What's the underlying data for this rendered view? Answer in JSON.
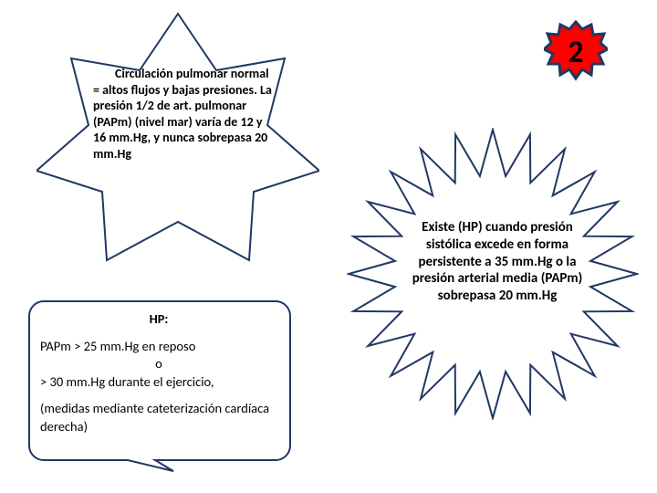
{
  "colors": {
    "background": "#ffffff",
    "stroke_navy": "#203864",
    "badge_fill": "#ff0000",
    "badge_stroke": "#203864",
    "text": "#000000"
  },
  "star7": {
    "type": "star-shape",
    "points": 7,
    "stroke_color": "#203864",
    "stroke_width": 2,
    "fill": "#ffffff",
    "text_fontsize": 14,
    "text": "Circulación pulmonar normal = altos flujos y bajas presiones. La presión 1/2 de art. pulmonar (PAPm) (nivel mar) varía de 12 y 16 mm.Hg, y nunca sobrepasa 20 mm.Hg"
  },
  "badge": {
    "type": "seal-12pt",
    "points": 12,
    "fill": "#ff0000",
    "stroke_color": "#203864",
    "stroke_width": 3,
    "value": "2",
    "value_fontsize": 34,
    "value_fontweight": 700
  },
  "sunburst": {
    "type": "starburst",
    "points": 24,
    "stroke_color": "#203864",
    "stroke_width": 2,
    "fill": "#ffffff",
    "text_fontsize": 15,
    "text": "Existe (HP) cuando presión sistólica excede en forma persistente a 35 mm.Hg o la presión arterial media (PAPm) sobrepasa 20 mm.Hg"
  },
  "callout": {
    "type": "rounded-rect-callout",
    "stroke_color": "#203864",
    "stroke_width": 2,
    "fill": "#ffffff",
    "corner_radius": 18,
    "hp_label": "HP:",
    "line1": "PAPm > 25 mm.Hg en reposo",
    "line_o": "o",
    "line2": "> 30 mm.Hg durante el ejercicio,",
    "line3": "(medidas mediante cateterización cardíaca derecha)"
  }
}
